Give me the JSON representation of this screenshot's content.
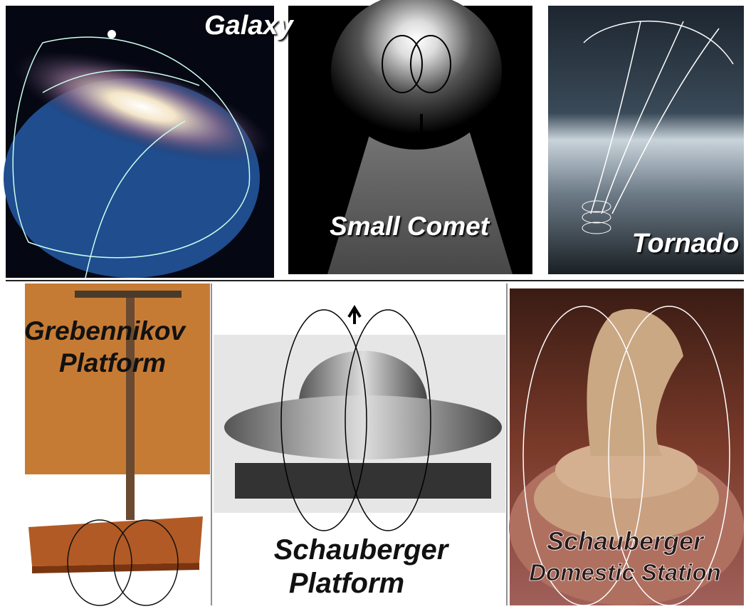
{
  "panels": [
    {
      "label": [
        "Galaxy"
      ]
    },
    {
      "label": [
        "Small Comet"
      ]
    },
    {
      "label": [
        "Tornado"
      ]
    },
    {
      "label": [
        "Grebennikov",
        "Platform"
      ]
    },
    {
      "label": [
        "Schauberger",
        "Platform"
      ]
    },
    {
      "label": [
        "Schauberger",
        "Domestic Station"
      ]
    }
  ]
}
